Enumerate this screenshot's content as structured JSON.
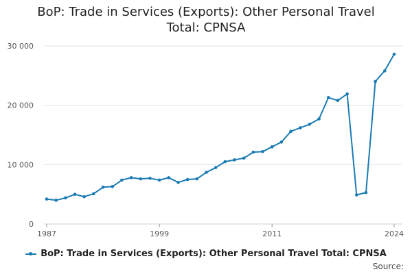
{
  "chart_data": {
    "type": "line",
    "title": [
      "BoP: Trade in Services (Exports): Other Personal Travel",
      "Total: CPNSA"
    ],
    "x": [
      1987,
      1988,
      1989,
      1990,
      1991,
      1992,
      1993,
      1994,
      1995,
      1996,
      1997,
      1998,
      1999,
      2000,
      2001,
      2002,
      2003,
      2004,
      2005,
      2006,
      2007,
      2008,
      2009,
      2010,
      2011,
      2012,
      2013,
      2014,
      2015,
      2016,
      2017,
      2018,
      2019,
      2020,
      2021,
      2022,
      2023,
      2024
    ],
    "series": [
      {
        "name": "BoP: Trade in Services (Exports): Other Personal Travel Total: CPNSA",
        "color": "#1a7bb3",
        "values": [
          4200,
          4000,
          4400,
          5000,
          4600,
          5100,
          6200,
          6300,
          7400,
          7800,
          7600,
          7700,
          7400,
          7800,
          7000,
          7500,
          7600,
          8700,
          9500,
          10500,
          10800,
          11100,
          12100,
          12200,
          13000,
          13800,
          15600,
          16200,
          16800,
          17700,
          21300,
          20800,
          21900,
          4900,
          5300,
          24000,
          25800,
          28600
        ]
      }
    ],
    "ylim": [
      0,
      30000
    ],
    "yticks": [
      0,
      10000,
      20000,
      30000
    ],
    "ytick_labels": [
      "0",
      "10 000",
      "20 000",
      "30 000"
    ],
    "xticks": [
      1987,
      1999,
      2011,
      2024
    ],
    "xtick_labels": [
      "1987",
      "1999",
      "2011",
      "2024"
    ],
    "xlim": [
      1987,
      2024
    ],
    "grid": true,
    "legend": "bottom"
  },
  "legend_label": "BoP: Trade in Services (Exports): Other Personal Travel Total: CPNSA",
  "source_label": "Source:"
}
